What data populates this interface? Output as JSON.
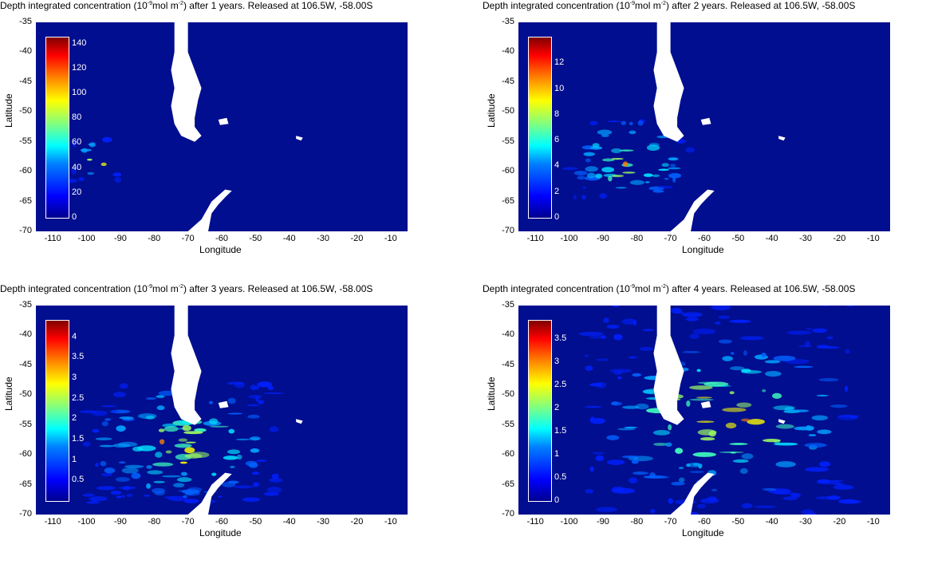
{
  "panels": [
    {
      "title_prefix": "Depth integrated concentration (10",
      "title_exp": "-9",
      "title_mid": "mol m",
      "title_exp2": "-2",
      "title_suffix": ") after 1 years. Released at 106.5W, -58.00S",
      "xlabel": "Longitude",
      "ylabel": "Latitude",
      "colorbar_ticks": [
        "0",
        "20",
        "40",
        "60",
        "80",
        "100",
        "120",
        "140"
      ],
      "colorbar_max": 145
    },
    {
      "title_prefix": "Depth integrated concentration (10",
      "title_exp": "-9",
      "title_mid": "mol m",
      "title_exp2": "-2",
      "title_suffix": ") after 2 years. Released at 106.5W, -58.00S",
      "xlabel": "Longitude",
      "ylabel": "Latitude",
      "colorbar_ticks": [
        "0",
        "2",
        "4",
        "6",
        "8",
        "10",
        "12"
      ],
      "colorbar_max": 14
    },
    {
      "title_prefix": "Depth integrated concentration (10",
      "title_exp": "-9",
      "title_mid": "mol m",
      "title_exp2": "-2",
      "title_suffix": ") after 3 years. Released at 106.5W, -58.00S",
      "xlabel": "Longitude",
      "ylabel": "Latitude",
      "colorbar_ticks": [
        "0.5",
        "1",
        "1.5",
        "2",
        "2.5",
        "3",
        "3.5",
        "4"
      ],
      "colorbar_max": 4.4
    },
    {
      "title_prefix": "Depth integrated concentration (10",
      "title_exp": "-9",
      "title_mid": "mol m",
      "title_exp2": "-2",
      "title_suffix": ") after 4 years. Released at 106.5W, -58.00S",
      "xlabel": "Longitude",
      "ylabel": "Latitude",
      "colorbar_ticks": [
        "0",
        "0.5",
        "1",
        "1.5",
        "2",
        "2.5",
        "3",
        "3.5"
      ],
      "colorbar_max": 3.9
    }
  ],
  "chart_data": [
    {
      "type": "heatmap",
      "title": "Depth integrated concentration (10-9mol m-2) after 1 years. Released at 106.5W, -58.00S",
      "xlabel": "Longitude",
      "ylabel": "Latitude",
      "xlim": [
        -115,
        -5
      ],
      "ylim": [
        -70,
        -35
      ],
      "xticks": [
        "-110",
        "-100",
        "-90",
        "-80",
        "-70",
        "-60",
        "-50",
        "-40",
        "-30",
        "-20",
        "-10"
      ],
      "yticks": [
        "-35",
        "-40",
        "-45",
        "-50",
        "-55",
        "-60",
        "-65",
        "-70"
      ],
      "colorbar_range": [
        0,
        145
      ],
      "plume": {
        "center_lon": -97,
        "center_lat": -58,
        "extent": "small"
      }
    },
    {
      "type": "heatmap",
      "title": "Depth integrated concentration (10-9mol m-2) after 2 years. Released at 106.5W, -58.00S",
      "xlabel": "Longitude",
      "ylabel": "Latitude",
      "xlim": [
        -115,
        -5
      ],
      "ylim": [
        -70,
        -35
      ],
      "xticks": [
        "-110",
        "-100",
        "-90",
        "-80",
        "-70",
        "-60",
        "-50",
        "-40",
        "-30",
        "-20",
        "-10"
      ],
      "yticks": [
        "-35",
        "-40",
        "-45",
        "-50",
        "-55",
        "-60",
        "-65",
        "-70"
      ],
      "colorbar_range": [
        0,
        14
      ],
      "plume": {
        "center_lon": -82,
        "center_lat": -58,
        "extent": "medium"
      }
    },
    {
      "type": "heatmap",
      "title": "Depth integrated concentration (10-9mol m-2) after 3 years. Released at 106.5W, -58.00S",
      "xlabel": "Longitude",
      "ylabel": "Latitude",
      "xlim": [
        -115,
        -5
      ],
      "ylim": [
        -70,
        -35
      ],
      "xticks": [
        "-110",
        "-100",
        "-90",
        "-80",
        "-70",
        "-60",
        "-50",
        "-40",
        "-30",
        "-20",
        "-10"
      ],
      "yticks": [
        "-35",
        "-40",
        "-45",
        "-50",
        "-55",
        "-60",
        "-65",
        "-70"
      ],
      "colorbar_range": [
        0,
        4.4
      ],
      "plume": {
        "center_lon": -72,
        "center_lat": -58,
        "extent": "large"
      }
    },
    {
      "type": "heatmap",
      "title": "Depth integrated concentration (10-9mol m-2) after 4 years. Released at 106.5W, -58.00S",
      "xlabel": "Longitude",
      "ylabel": "Latitude",
      "xlim": [
        -115,
        -5
      ],
      "ylim": [
        -70,
        -35
      ],
      "xticks": [
        "-110",
        "-100",
        "-90",
        "-80",
        "-70",
        "-60",
        "-50",
        "-40",
        "-30",
        "-20",
        "-10"
      ],
      "yticks": [
        "-35",
        "-40",
        "-45",
        "-50",
        "-55",
        "-60",
        "-65",
        "-70"
      ],
      "colorbar_range": [
        0,
        3.9
      ],
      "plume": {
        "center_lon": -55,
        "center_lat": -54,
        "extent": "very large"
      }
    }
  ]
}
